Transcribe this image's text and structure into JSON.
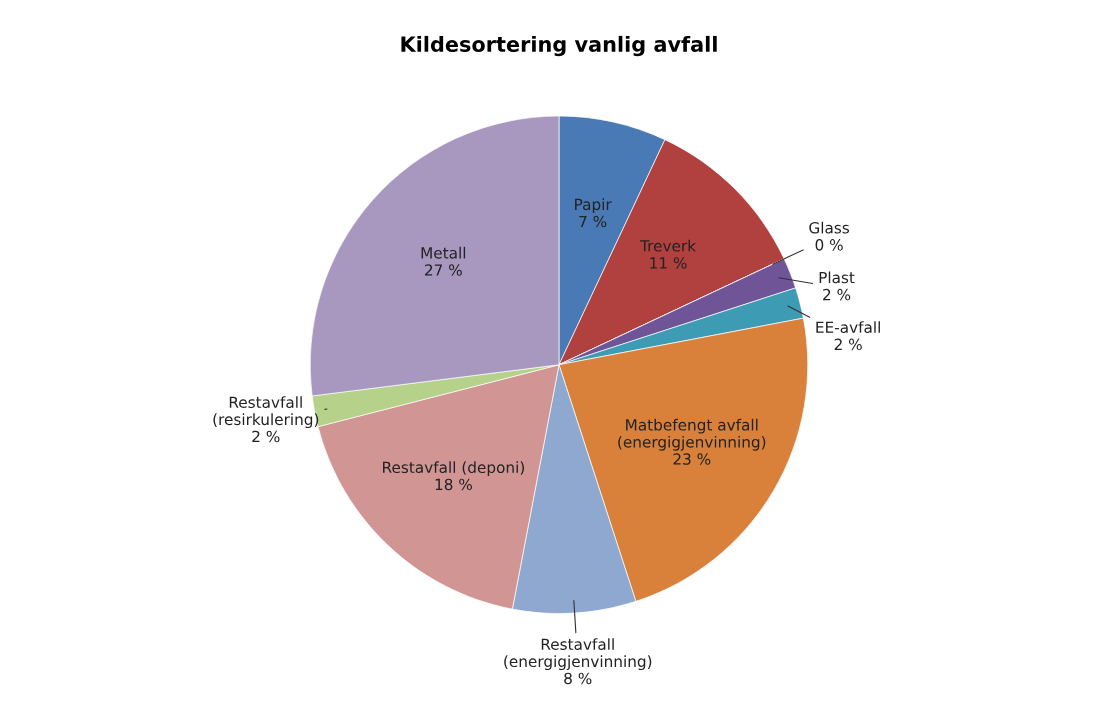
{
  "chart_data": {
    "type": "pie",
    "title": "Kildesortering vanlig avfall",
    "categories": [
      "Papir",
      "Treverk",
      "Glass",
      "Plast",
      "EE-avfall",
      "Matbefengt avfall\n(energigjenvinning)",
      "Restavfall\n(energigjenvinning)",
      "Restavfall (deponi)",
      "Restavfall\n(resirkulering)",
      "Metall"
    ],
    "values": [
      7,
      11,
      0,
      2,
      2,
      23,
      8,
      18,
      2,
      27
    ],
    "colors": [
      "#4a7ab5",
      "#b0413e",
      "#8bab45",
      "#6f5597",
      "#3d9bb3",
      "#d9813a",
      "#8fa8d0",
      "#d19594",
      "#b5d18a",
      "#a898c0"
    ],
    "value_labels": [
      "7 %",
      "11 %",
      "0 %",
      "2 %",
      "2 %",
      "23 %",
      "8 %",
      "18 %",
      "2 %",
      "27 %"
    ],
    "legend": false
  }
}
